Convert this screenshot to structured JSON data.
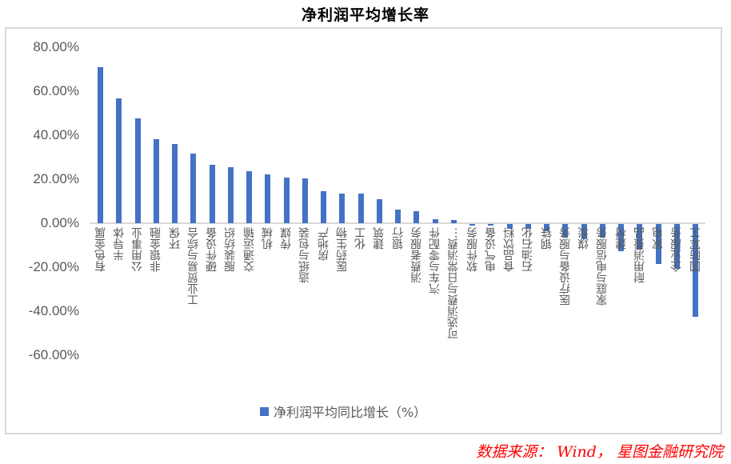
{
  "chart_data": {
    "type": "bar",
    "title": "净利润平均增长率",
    "xlabel": "",
    "ylabel": "",
    "ylim": [
      -60,
      80
    ],
    "yticks": [
      "80.00%",
      "60.00%",
      "40.00%",
      "20.00%",
      "0.00%",
      "-20.00%",
      "-40.00%",
      "-60.00%"
    ],
    "grid": false,
    "legend_position": "bottom",
    "categories": [
      "有色金属",
      "半导体",
      "公用事业",
      "非银金融",
      "环保",
      "工业贸易与综合",
      "硬件设备",
      "服装纺织",
      "交通运输",
      "机械",
      "传媒",
      "造纸与包装",
      "房地产",
      "医药生物",
      "化工",
      "建筑",
      "银行",
      "消费者服务",
      "汽车与零配件",
      "可选消费与日常消费…",
      "软件服务",
      "电气设备",
      "食品饮料",
      "石油石化",
      "钢铁",
      "医疗设备与服务",
      "煤炭",
      "家庭与电信服务",
      "建材",
      "耐用消费品",
      "家电",
      "企业服务",
      "国防军工"
    ],
    "series": [
      {
        "name": "净利润平均同比增长（%）",
        "color": "#4472c4",
        "values": [
          70.9,
          56.7,
          47.6,
          38.2,
          36.0,
          31.6,
          26.5,
          25.5,
          23.6,
          22.2,
          20.7,
          20.4,
          14.5,
          13.3,
          13.3,
          10.9,
          6.3,
          5.3,
          1.7,
          1.6,
          -0.8,
          -0.8,
          -2.2,
          -2.2,
          -3.3,
          -6.2,
          -6.9,
          -6.2,
          -12.4,
          -11.6,
          -18.2,
          -20.4,
          -42.2
        ]
      }
    ]
  },
  "legend": {
    "label": "净利润平均同比增长（%）"
  },
  "source": "数据来源： Wind， 星图金融研究院"
}
